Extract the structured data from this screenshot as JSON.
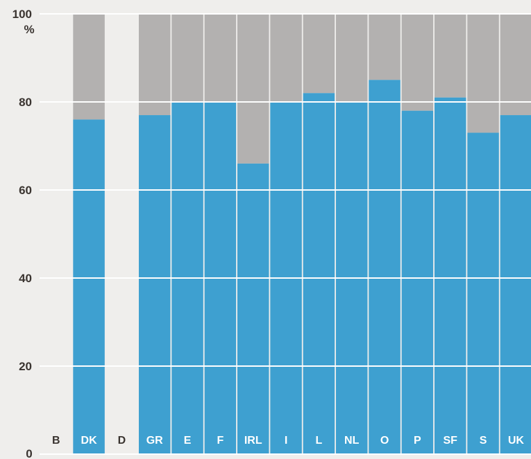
{
  "chart_data": {
    "type": "bar",
    "categories": [
      "B",
      "DK",
      "D",
      "GR",
      "E",
      "F",
      "IRL",
      "I",
      "L",
      "NL",
      "O",
      "P",
      "SF",
      "S",
      "UK"
    ],
    "values": [
      null,
      76,
      null,
      77,
      80,
      80,
      66,
      80,
      82,
      80,
      85,
      78,
      81,
      73,
      77
    ],
    "ylim": [
      0,
      100
    ],
    "yticks": [
      0,
      20,
      40,
      60,
      80,
      100
    ],
    "yunit": "%",
    "grid": true,
    "colors": {
      "value": "#3ea0d0",
      "remainder": "#b3b1b0",
      "background": "#efeeec",
      "label_on_bar": "#ffffff",
      "label_no_bar": "#3a3430"
    }
  }
}
